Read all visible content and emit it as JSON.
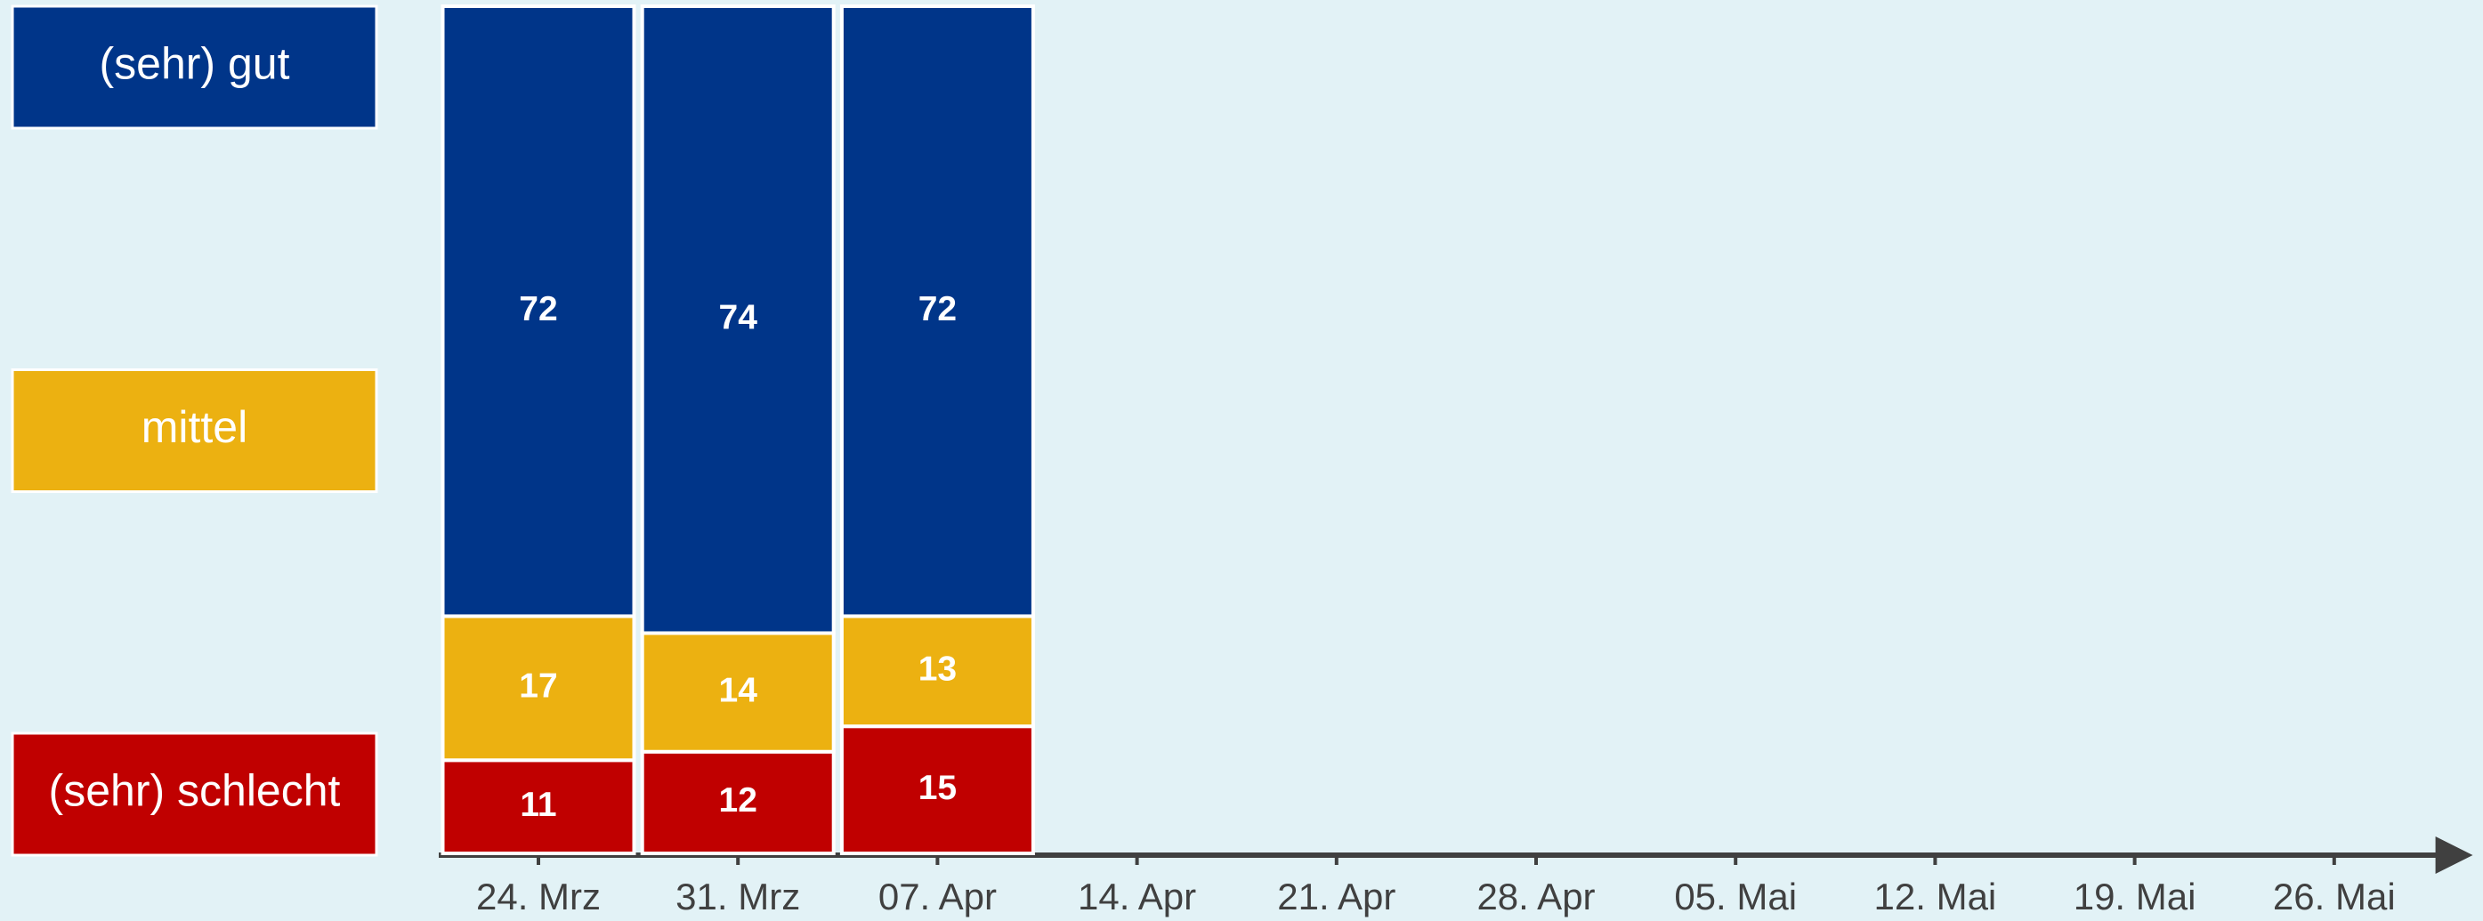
{
  "chart_data": {
    "type": "stacked_bar",
    "categories": [
      "24. Mrz",
      "31. Mrz",
      "07. Apr",
      "14. Apr",
      "21. Apr",
      "28. Apr",
      "05. Mai",
      "12. Mai",
      "19. Mai",
      "26. Mai"
    ],
    "series": [
      {
        "name": "(sehr) schlecht",
        "color": "#c00000",
        "values": [
          11,
          12,
          15,
          null,
          null,
          null,
          null,
          null,
          null,
          null
        ]
      },
      {
        "name": "mittel",
        "color": "#ecb111",
        "values": [
          17,
          14,
          13,
          null,
          null,
          null,
          null,
          null,
          null,
          null
        ]
      },
      {
        "name": "(sehr) gut",
        "color": "#003589",
        "values": [
          72,
          74,
          72,
          null,
          null,
          null,
          null,
          null,
          null,
          null
        ]
      }
    ],
    "ylim": [
      0,
      100
    ],
    "legend": "left"
  }
}
